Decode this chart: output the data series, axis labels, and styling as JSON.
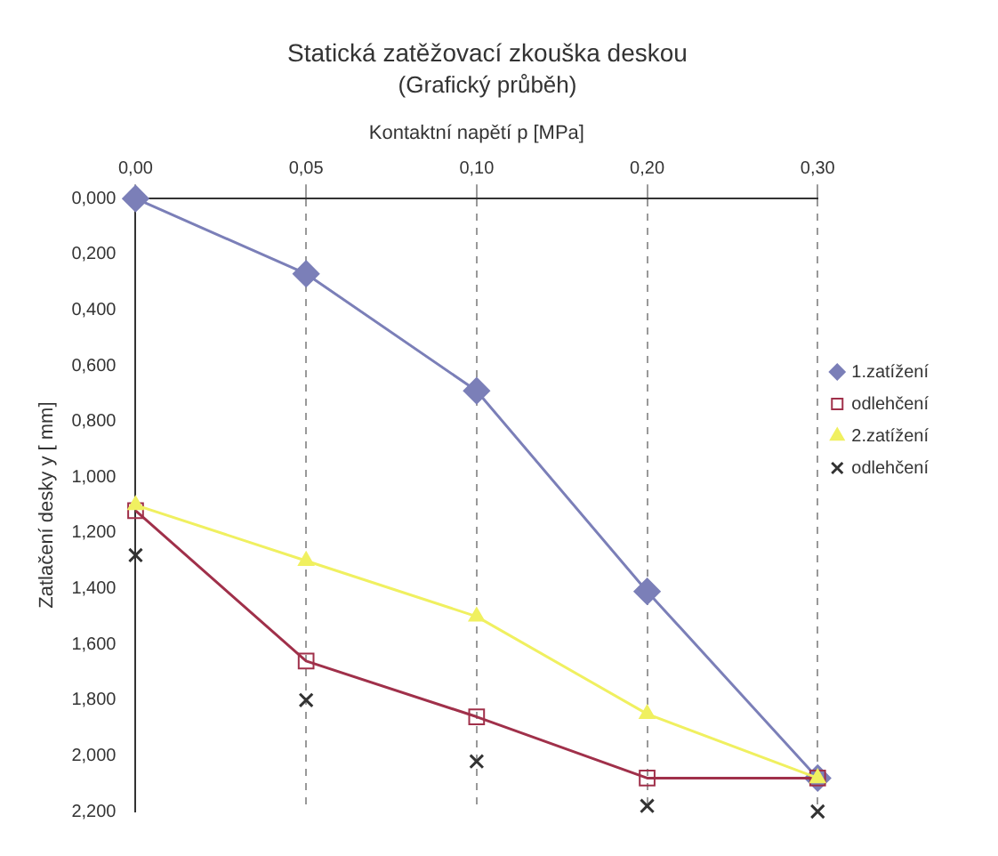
{
  "chart_data": {
    "type": "line",
    "title": "Statická zatěžovací zkouška deskou",
    "subtitle": "(Grafický průběh)",
    "xlabel": "Kontaktní napětí p [MPa]",
    "ylabel": "Zatlačení desky y [ mm]",
    "categories": [
      "0,00",
      "0,05",
      "0,10",
      "0,20",
      "0,30"
    ],
    "ylim": [
      2.2,
      0
    ],
    "yticks": [
      {
        "value": 0,
        "label": "0,000"
      },
      {
        "value": 0.2,
        "label": "0,200"
      },
      {
        "value": 0.4,
        "label": "0,400"
      },
      {
        "value": 0.6,
        "label": "0,600"
      },
      {
        "value": 0.8,
        "label": "0,800"
      },
      {
        "value": 1,
        "label": "1,000"
      },
      {
        "value": 1.2,
        "label": "1,200"
      },
      {
        "value": 1.4,
        "label": "1,400"
      },
      {
        "value": 1.6,
        "label": "1,600"
      },
      {
        "value": 1.8,
        "label": "1,800"
      },
      {
        "value": 2,
        "label": "2,000"
      },
      {
        "value": 2.2,
        "label": "2,200"
      }
    ],
    "grid": "x",
    "legend": "right",
    "series": [
      {
        "name": "1.zatížení",
        "color": "#7b7fb8",
        "marker": "diamond",
        "values": [
          0,
          0.27,
          0.69,
          1.41,
          2.08
        ]
      },
      {
        "name": "odlehčení",
        "color": "#a0304a",
        "marker": "square",
        "values": [
          1.12,
          1.66,
          1.86,
          2.08,
          2.08
        ]
      },
      {
        "name": "2.zatížení",
        "color": "#f0f060",
        "marker": "triangle",
        "values": [
          1.1,
          1.3,
          1.5,
          1.85,
          2.08
        ]
      },
      {
        "name": "odlehčení",
        "type": "scatter",
        "color": "#333333",
        "marker": "cross",
        "values": [
          1.28,
          1.8,
          2.02,
          2.18,
          2.2
        ]
      }
    ]
  }
}
